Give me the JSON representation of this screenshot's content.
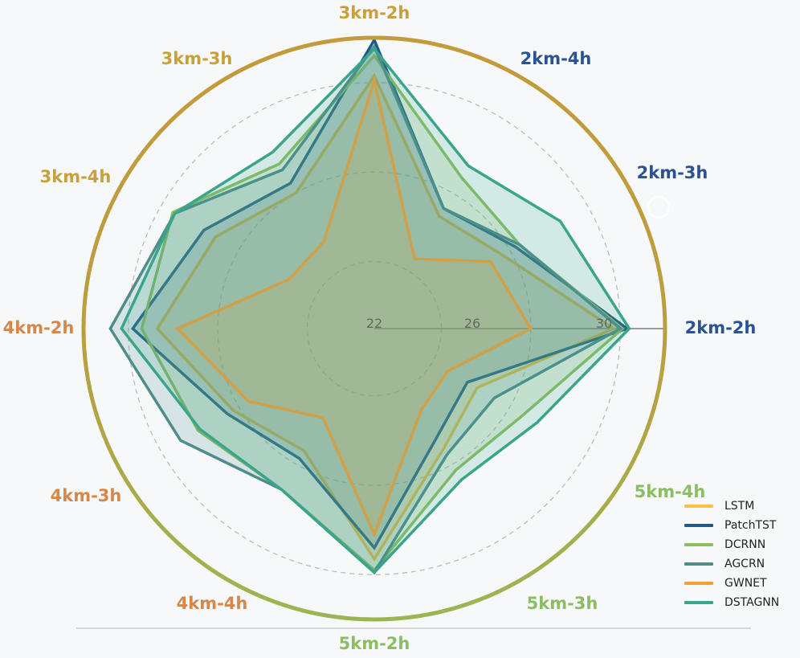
{
  "chart_data": {
    "type": "radar",
    "axes": [
      "2km-2h",
      "2km-3h",
      "2km-4h",
      "3km-2h",
      "3km-3h",
      "3km-4h",
      "4km-2h",
      "4km-3h",
      "4km-4h",
      "5km-2h",
      "5km-3h",
      "5km-4h"
    ],
    "axis_colors": [
      "#2b5391",
      "#2b5391",
      "#2b5391",
      "#c8a13c",
      "#c8a13c",
      "#c8a13c",
      "#d6874a",
      "#d6874a",
      "#d6874a",
      "#8dbd62",
      "#8dbd62",
      "#8dbd62"
    ],
    "radial_range": [
      19,
      32
    ],
    "radial_ticks": [
      22,
      26,
      30
    ],
    "radial_tick_labels": [
      "22",
      "26",
      "30"
    ],
    "series": [
      {
        "name": "LSTM",
        "color": "#f7c242",
        "values": [
          29.7,
          25.6,
          24.8,
          30.3,
          26.0,
          27.2,
          28.7,
          26.3,
          25.3,
          29.3,
          25.2,
          24.3
        ]
      },
      {
        "name": "PatchTST",
        "color": "#1c5a8a",
        "values": [
          30.3,
          26.3,
          25.2,
          31.9,
          26.5,
          27.8,
          29.8,
          26.6,
          25.7,
          28.8,
          24.6,
          23.8
        ]
      },
      {
        "name": "DCRNN",
        "color": "#8cbd62",
        "values": [
          30.1,
          26.5,
          26.8,
          31.2,
          27.5,
          29.4,
          29.4,
          28.1,
          27.3,
          29.8,
          26.3,
          26.7
        ]
      },
      {
        "name": "AGCRN",
        "color": "#4f8d8b",
        "values": [
          30.0,
          26.5,
          25.2,
          31.6,
          27.2,
          29.3,
          30.8,
          29.0,
          27.3,
          29.9,
          25.5,
          25.2
        ]
      },
      {
        "name": "GWNET",
        "color": "#f2a03a",
        "values": [
          26.0,
          25.0,
          22.6,
          30.1,
          23.5,
          23.4,
          27.8,
          25.5,
          23.6,
          28.2,
          23.2,
          22.8
        ]
      },
      {
        "name": "DSTAGNN",
        "color": "#3aa58a",
        "values": [
          30.4,
          28.6,
          27.4,
          31.5,
          28.1,
          29.3,
          30.3,
          28.0,
          27.3,
          29.9,
          26.8,
          27.4
        ]
      }
    ],
    "title": "",
    "legend_position": "bottom-right"
  }
}
